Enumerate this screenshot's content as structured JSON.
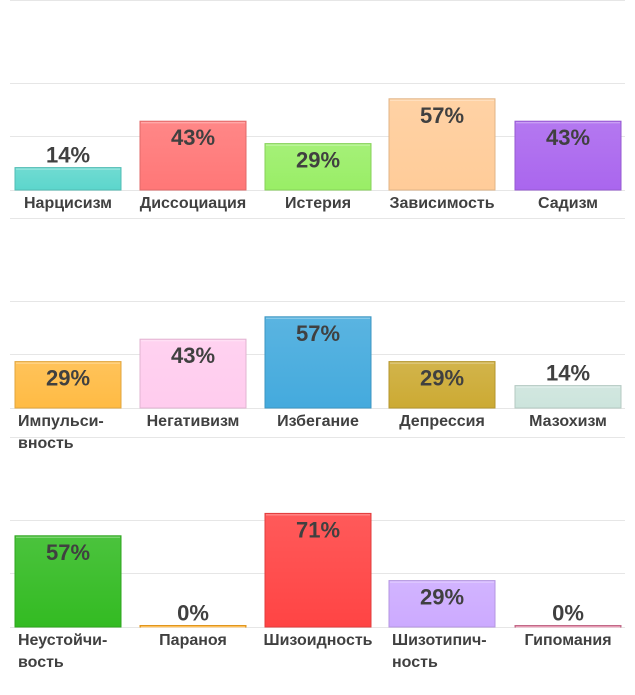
{
  "colors": {
    "gridline": "#e6e6e6",
    "value_label": "#404040",
    "category_label": "#404040"
  },
  "chart_data": [
    {
      "type": "bar",
      "ylim": [
        0,
        100
      ],
      "grid": true,
      "categories": [
        "Нарцисизм",
        "Диссоциация",
        "Истерия",
        "Зависимость",
        "Садизм"
      ],
      "values": [
        14,
        43,
        29,
        57,
        43
      ],
      "value_labels": [
        "14%",
        "43%",
        "29%",
        "57%",
        "43%"
      ],
      "colors": [
        "#5cd6cc",
        "#ff7777",
        "#99ee66",
        "#ffcc99",
        "#aa66ee"
      ]
    },
    {
      "type": "bar",
      "ylim": [
        0,
        100
      ],
      "grid": true,
      "categories": [
        "Импульси-вность",
        "Негативизм",
        "Избегание",
        "Депрессия",
        "Мазохизм"
      ],
      "values": [
        29,
        43,
        57,
        29,
        14
      ],
      "value_labels": [
        "29%",
        "43%",
        "57%",
        "29%",
        "14%"
      ],
      "colors": [
        "#ffbb44",
        "#ffccee",
        "#44aadd",
        "#ccaa33",
        "#cce4dc"
      ]
    },
    {
      "type": "bar",
      "ylim": [
        0,
        100
      ],
      "grid": true,
      "categories": [
        "Неустойчи-вость",
        "Параноя",
        "Шизоидность",
        "Шизотипич-ность",
        "Гипомания"
      ],
      "values": [
        57,
        0,
        71,
        29,
        0
      ],
      "value_labels": [
        "57%",
        "0%",
        "71%",
        "29%",
        "0%"
      ],
      "colors": [
        "#33bb22",
        "#ffaa22",
        "#ff4444",
        "#ccaaff",
        "#dd7799"
      ]
    }
  ]
}
